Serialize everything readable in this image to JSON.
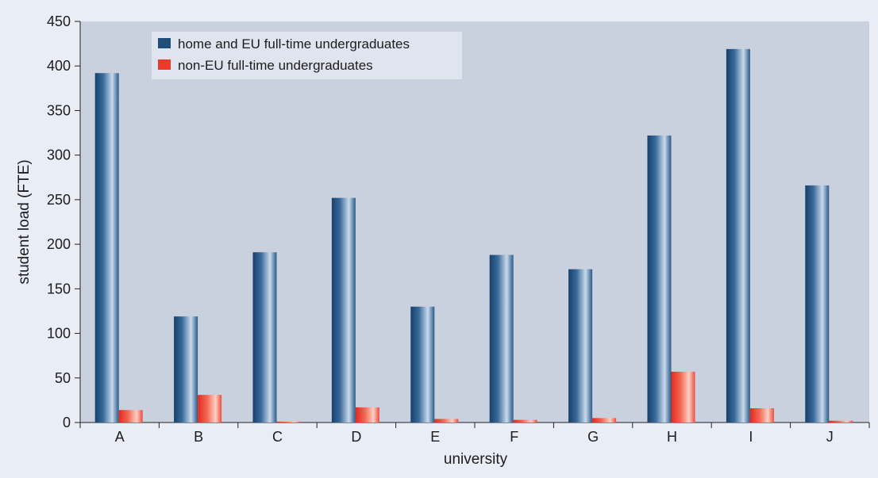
{
  "chart_data": {
    "type": "bar",
    "title": "",
    "xlabel": "university",
    "ylabel": "student load (FTE)",
    "ylim": [
      0,
      450
    ],
    "yticks": [
      0,
      50,
      100,
      150,
      200,
      250,
      300,
      350,
      400,
      450
    ],
    "categories": [
      "A",
      "B",
      "C",
      "D",
      "E",
      "F",
      "G",
      "H",
      "I",
      "J"
    ],
    "series": [
      {
        "name": "home and EU full-time undergraduates",
        "color": "#1f4e7c",
        "values": [
          392,
          119,
          191,
          252,
          130,
          188,
          172,
          322,
          419,
          266
        ]
      },
      {
        "name": "non-EU full-time undergraduates",
        "color": "#ee3a2c",
        "values": [
          14,
          31,
          1,
          17,
          4,
          3,
          5,
          57,
          16,
          2
        ]
      }
    ],
    "legend": "top-left",
    "grid": false
  }
}
